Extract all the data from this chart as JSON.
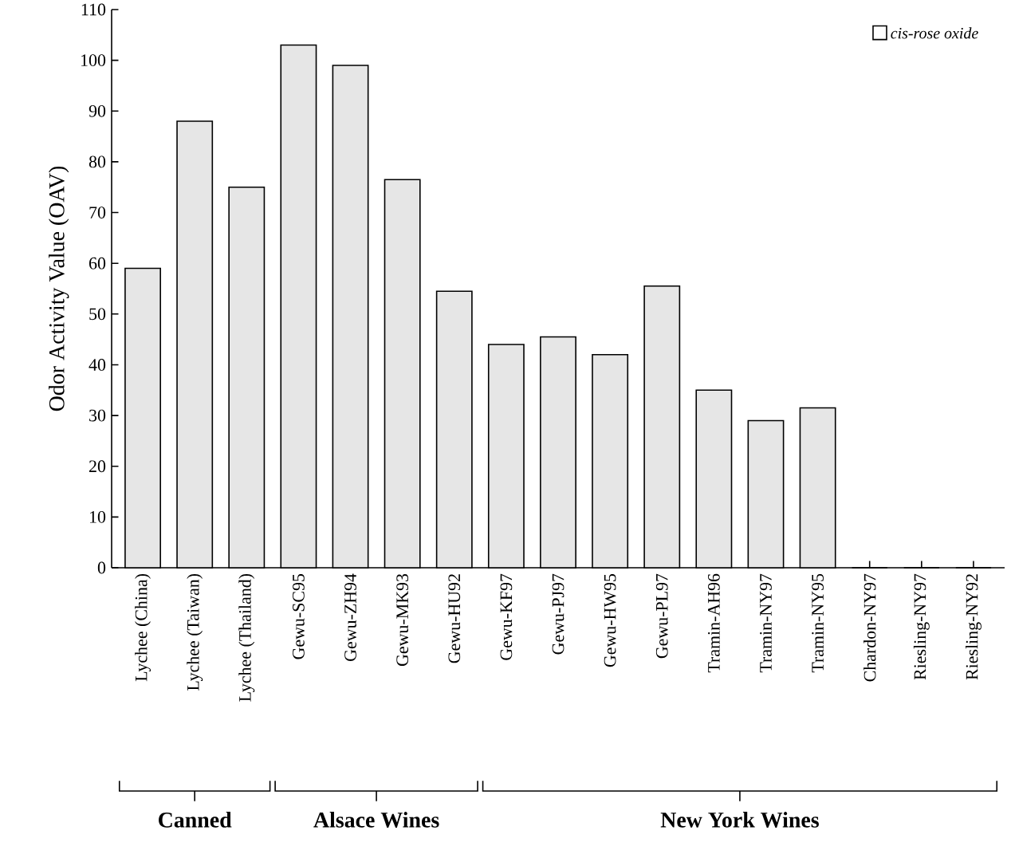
{
  "chart_data": {
    "type": "bar",
    "ylabel": "Odor Activity Value (OAV)",
    "categories": [
      "Lychee (China)",
      "Lychee (Taiwan)",
      "Lychee (Thailand)",
      "Gewu-SC95",
      "Gewu-ZH94",
      "Gewu-MK93",
      "Gewu-HU92",
      "Gewu-KF97",
      "Gewu-PJ97",
      "Gewu-HW95",
      "Gewu-PL97",
      "Tramin-AH96",
      "Tramin-NY97",
      "Tramin-NY95",
      "Chardon-NY97",
      "Riesling-NY97",
      "Riesling-NY92"
    ],
    "series": [
      {
        "name": "cis-rose oxide",
        "color": "#e6e6e6",
        "values": [
          59,
          88,
          75,
          103,
          99,
          76.5,
          54.5,
          44,
          45.5,
          42,
          55.5,
          35,
          29,
          31.5,
          0,
          0,
          0
        ]
      }
    ],
    "ylim": [
      0,
      110
    ],
    "yticks": [
      0,
      10,
      20,
      30,
      40,
      50,
      60,
      70,
      80,
      90,
      100,
      110
    ],
    "legend": "top right",
    "grid": false,
    "annotations": [
      "Canned",
      "Alsace Wines",
      "New York Wines"
    ]
  }
}
